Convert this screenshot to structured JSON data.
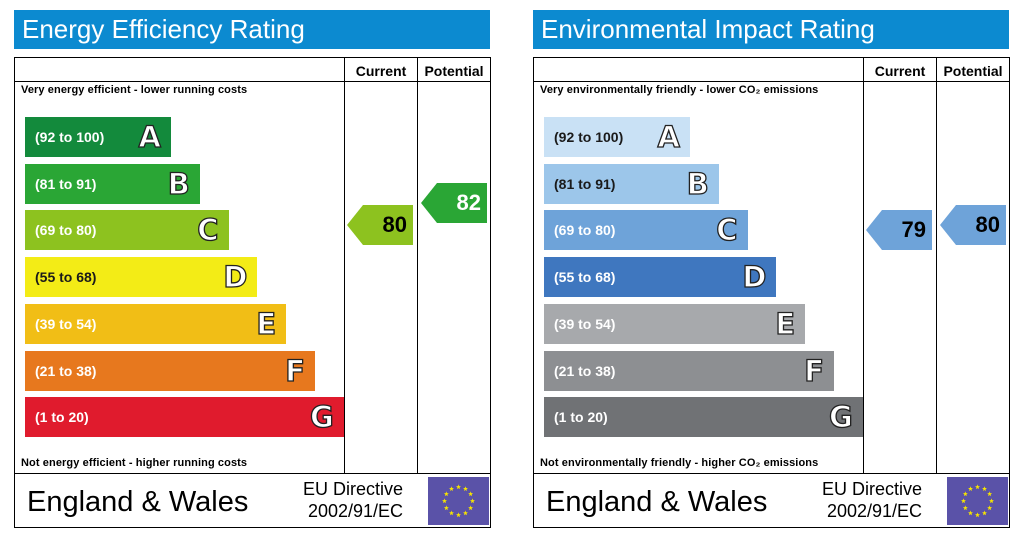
{
  "panels": [
    {
      "title": "Energy Efficiency Rating",
      "columns": {
        "current": "Current",
        "potential": "Potential"
      },
      "top_caption": "Very energy efficient - lower running costs",
      "bottom_caption": "Not energy efficient - higher running costs",
      "bands": [
        {
          "range": "(92 to 100)",
          "letter": "A",
          "color": "#138a3c"
        },
        {
          "range": "(81 to 91)",
          "letter": "B",
          "color": "#2aa635"
        },
        {
          "range": "(69 to 80)",
          "letter": "C",
          "color": "#8dc21f"
        },
        {
          "range": "(55 to 68)",
          "letter": "D",
          "color": "#f3ec16"
        },
        {
          "range": "(39 to 54)",
          "letter": "E",
          "color": "#f1be16"
        },
        {
          "range": "(21 to 38)",
          "letter": "F",
          "color": "#e7781e"
        },
        {
          "range": "(1 to 20)",
          "letter": "G",
          "color": "#e01b2d"
        }
      ],
      "current": {
        "value": "80",
        "color": "#8dc21f",
        "text_color": "#000000"
      },
      "potential": {
        "value": "82",
        "color": "#2aa635",
        "text_color": "#ffffff"
      },
      "footer": {
        "country": "England & Wales",
        "directive_line1": "EU Directive",
        "directive_line2": "2002/91/EC"
      }
    },
    {
      "title": "Environmental Impact Rating",
      "columns": {
        "current": "Current",
        "potential": "Potential"
      },
      "top_caption": "Very environmentally friendly - lower CO₂ emissions",
      "bottom_caption": "Not environmentally friendly - higher CO₂ emissions",
      "bands": [
        {
          "range": "(92 to 100)",
          "letter": "A",
          "color": "#c9e1f5"
        },
        {
          "range": "(81 to 91)",
          "letter": "B",
          "color": "#9cc6ea"
        },
        {
          "range": "(69 to 80)",
          "letter": "C",
          "color": "#6ea3d9"
        },
        {
          "range": "(55 to 68)",
          "letter": "D",
          "color": "#3f77bf"
        },
        {
          "range": "(39 to 54)",
          "letter": "E",
          "color": "#a7a9ac"
        },
        {
          "range": "(21 to 38)",
          "letter": "F",
          "color": "#8d8f92"
        },
        {
          "range": "(1 to 20)",
          "letter": "G",
          "color": "#707275"
        }
      ],
      "current": {
        "value": "79",
        "color": "#6ea3d9",
        "text_color": "#000000"
      },
      "potential": {
        "value": "80",
        "color": "#6ea3d9",
        "text_color": "#000000"
      },
      "footer": {
        "country": "England & Wales",
        "directive_line1": "EU Directive",
        "directive_line2": "2002/91/EC"
      }
    }
  ],
  "colors": {
    "title_bar": "#0c8ad0",
    "eu_flag": "#5a52a8",
    "eu_stars": "#f6e400"
  }
}
